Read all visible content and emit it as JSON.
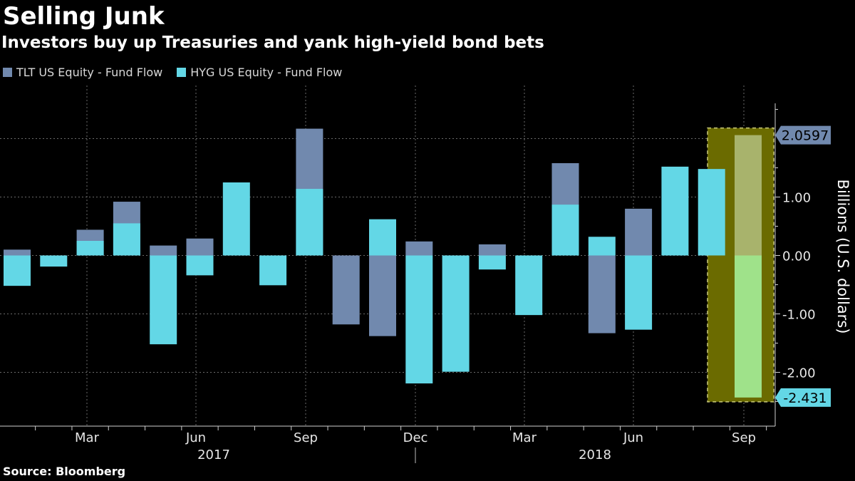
{
  "title": "Selling Junk",
  "subtitle": "Investors buy up Treasuries and yank high-yield bond bets",
  "source": "Source: Bloomberg",
  "colors": {
    "tlt": "#7189ae",
    "hyg": "#63d7e6",
    "highlight_fill": "#6b6b00",
    "highlight_border": "#c9c97a"
  },
  "chart_data": {
    "type": "bar",
    "stacked": false,
    "overlaid": true,
    "x_tick_labels": [
      "Mar",
      "Jun",
      "Sep",
      "Dec",
      "Mar",
      "Jun",
      "Sep"
    ],
    "year_labels": [
      "2017",
      "2018"
    ],
    "ylabel": "Billions (U.S. dollars)",
    "y_tick_labels": [
      "-2.00",
      "-1.00",
      "0.00",
      "1.00"
    ],
    "ylim": [
      -2.9,
      2.6
    ],
    "grid": true,
    "legend_position": "top-left",
    "series": [
      {
        "name": "TLT US Equity - Fund Flow",
        "values": [
          0.1,
          0.0,
          0.44,
          0.92,
          0.17,
          0.29,
          0.0,
          0.0,
          2.17,
          -1.18,
          -1.38,
          0.24,
          0.0,
          0.19,
          0.0,
          1.58,
          -1.33,
          0.8,
          0.0,
          0.0,
          2.0597
        ]
      },
      {
        "name": "HYG US Equity - Fund Flow",
        "values": [
          -0.52,
          -0.19,
          0.25,
          0.55,
          -1.52,
          -0.34,
          1.25,
          -0.51,
          1.14,
          0.0,
          0.62,
          -2.19,
          -1.99,
          -0.24,
          -1.02,
          0.87,
          0.32,
          -1.27,
          1.52,
          1.48,
          -2.431
        ]
      }
    ],
    "callouts": [
      "2.0597",
      "-2.431"
    ]
  }
}
